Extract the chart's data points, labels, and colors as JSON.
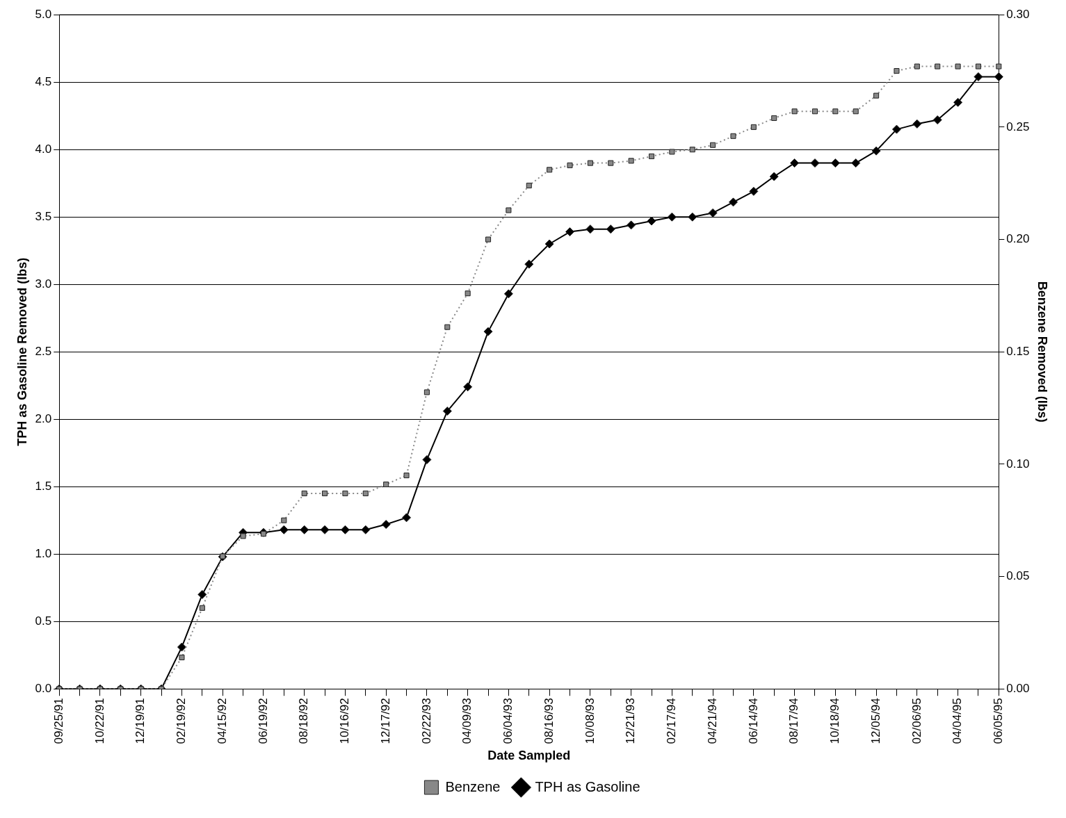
{
  "chart_data": {
    "type": "line",
    "xlabel": "Date Sampled",
    "ylabel": "TPH as Gasoline Removed (lbs)",
    "y2label": "Benzene Removed (lbs)",
    "categories": [
      "09/25/91",
      null,
      "10/22/91",
      null,
      "12/19/91",
      null,
      "02/19/92",
      null,
      "04/15/92",
      null,
      "06/19/92",
      null,
      "08/18/92",
      null,
      "10/16/92",
      null,
      "12/17/92",
      null,
      "02/22/93",
      null,
      "04/09/93",
      null,
      "06/04/93",
      null,
      "08/16/93",
      null,
      "10/08/93",
      null,
      "12/21/93",
      null,
      "02/17/94",
      null,
      "04/21/94",
      null,
      "06/14/94",
      null,
      "08/17/94",
      null,
      "10/18/94",
      null,
      "12/05/94",
      null,
      "02/06/95",
      null,
      "04/04/95",
      null,
      "06/05/95"
    ],
    "series": [
      {
        "name": "TPH as Gasoline",
        "color": "#000000",
        "marker": "diamond",
        "line_style": "solid",
        "values": [
          0,
          0,
          0,
          0,
          0,
          0,
          0.31,
          0.7,
          0.98,
          1.16,
          1.16,
          1.18,
          1.18,
          1.18,
          1.18,
          1.18,
          1.22,
          1.27,
          1.7,
          2.06,
          2.24,
          2.65,
          2.93,
          3.15,
          3.3,
          3.39,
          3.41,
          3.41,
          3.44,
          3.47,
          3.5,
          3.5,
          3.53,
          3.61,
          3.69,
          3.8,
          3.9,
          3.9,
          3.9,
          3.9,
          3.99,
          4.15,
          4.19,
          4.22,
          4.35,
          4.54,
          4.54
        ]
      },
      {
        "name": "Benzene",
        "color": "#888888",
        "marker": "square",
        "line_style": "dotted",
        "axis": "y2",
        "values": [
          0,
          0,
          0,
          0,
          0,
          0,
          0.014,
          0.036,
          0.059,
          0.068,
          0.069,
          0.075,
          0.087,
          0.087,
          0.087,
          0.087,
          0.091,
          0.095,
          0.132,
          0.161,
          0.176,
          0.2,
          0.213,
          0.224,
          0.231,
          0.233,
          0.234,
          0.234,
          0.235,
          0.237,
          0.239,
          0.24,
          0.242,
          0.246,
          0.25,
          0.254,
          0.257,
          0.257,
          0.257,
          0.257,
          0.264,
          0.275,
          0.277,
          0.277,
          0.277,
          0.277,
          0.277
        ]
      }
    ],
    "ylim": [
      0,
      5
    ],
    "yticks": [
      {
        "value": 0,
        "label": "0.0"
      },
      {
        "value": 0.5,
        "label": "0.5"
      },
      {
        "value": 1,
        "label": "1.0"
      },
      {
        "value": 1.5,
        "label": "1.5"
      },
      {
        "value": 2,
        "label": "2.0"
      },
      {
        "value": 2.5,
        "label": "2.5"
      },
      {
        "value": 3,
        "label": "3.0"
      },
      {
        "value": 3.5,
        "label": "3.5"
      },
      {
        "value": 4,
        "label": "4.0"
      },
      {
        "value": 4.5,
        "label": "4.5"
      },
      {
        "value": 5,
        "label": "5.0"
      }
    ],
    "y2lim": [
      0,
      0.3
    ],
    "y2ticks": [
      {
        "value": 0,
        "label": "0.00"
      },
      {
        "value": 0.05,
        "label": "0.05"
      },
      {
        "value": 0.1,
        "label": "0.10"
      },
      {
        "value": 0.15,
        "label": "0.15"
      },
      {
        "value": 0.2,
        "label": "0.20"
      },
      {
        "value": 0.25,
        "label": "0.25"
      },
      {
        "value": 0.3,
        "label": "0.30"
      }
    ],
    "grid": "y",
    "legend": "bottom"
  }
}
